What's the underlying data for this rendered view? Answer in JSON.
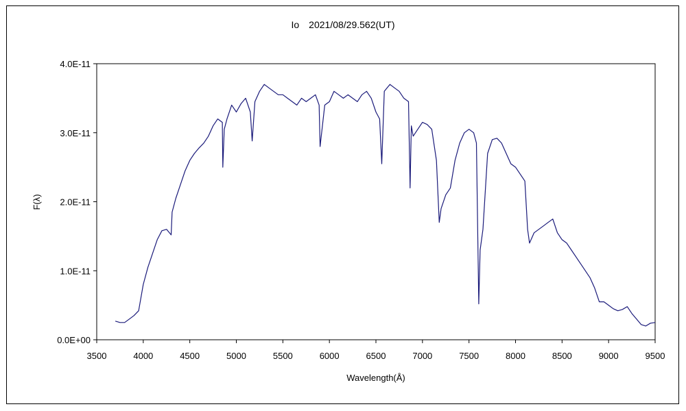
{
  "chart_data": {
    "type": "line",
    "title": "Io　2021/08/29.562(UT)",
    "xlabel": "Wavelength(Å)",
    "ylabel": "F(λ)",
    "xlim": [
      3500,
      9500
    ],
    "ylim": [
      0,
      4e-11
    ],
    "x_ticks": [
      3500,
      4000,
      4500,
      5000,
      5500,
      6000,
      6500,
      7000,
      7500,
      8000,
      8500,
      9000,
      9500
    ],
    "y_ticks": [
      0,
      1e-11,
      2e-11,
      3e-11,
      4e-11
    ],
    "x_tick_labels": [
      "3500",
      "4000",
      "4500",
      "5000",
      "5500",
      "6000",
      "6500",
      "7000",
      "7500",
      "8000",
      "8500",
      "9000",
      "9500"
    ],
    "y_tick_labels": [
      "0.0E+00",
      "1.0E-11",
      "2.0E-11",
      "3.0E-11",
      "4.0E-11"
    ],
    "grid": false,
    "legend": "none",
    "line_color": "#1a1a7a",
    "series": [
      {
        "x": [
          3700,
          3750,
          3800,
          3850,
          3900,
          3950,
          4000,
          4050,
          4100,
          4150,
          4200,
          4250,
          4300,
          4310,
          4350,
          4400,
          4450,
          4500,
          4550,
          4600,
          4650,
          4700,
          4750,
          4800,
          4850,
          4855,
          4870,
          4900,
          4950,
          5000,
          5050,
          5100,
          5150,
          5170,
          5200,
          5250,
          5300,
          5350,
          5400,
          5450,
          5500,
          5550,
          5600,
          5650,
          5700,
          5750,
          5800,
          5850,
          5890,
          5900,
          5950,
          6000,
          6050,
          6100,
          6150,
          6200,
          6250,
          6300,
          6350,
          6400,
          6450,
          6500,
          6540,
          6563,
          6590,
          6650,
          6700,
          6750,
          6800,
          6850,
          6867,
          6880,
          6900,
          6950,
          7000,
          7050,
          7100,
          7150,
          7180,
          7200,
          7250,
          7300,
          7350,
          7400,
          7450,
          7500,
          7550,
          7580,
          7605,
          7620,
          7650,
          7700,
          7750,
          7800,
          7850,
          7900,
          7950,
          8000,
          8050,
          8100,
          8130,
          8150,
          8200,
          8250,
          8300,
          8350,
          8400,
          8450,
          8500,
          8550,
          8600,
          8650,
          8700,
          8750,
          8800,
          8850,
          8900,
          8950,
          9000,
          9050,
          9100,
          9150,
          9200,
          9250,
          9300,
          9350,
          9400,
          9450,
          9500
        ],
        "y": [
          2.7e-12,
          2.5e-12,
          2.5e-12,
          3e-12,
          3.5e-12,
          4.2e-12,
          8e-12,
          1.05e-11,
          1.25e-11,
          1.45e-11,
          1.58e-11,
          1.6e-11,
          1.52e-11,
          1.85e-11,
          2.05e-11,
          2.25e-11,
          2.45e-11,
          2.6e-11,
          2.7e-11,
          2.78e-11,
          2.85e-11,
          2.95e-11,
          3.1e-11,
          3.2e-11,
          3.15e-11,
          2.5e-11,
          3.05e-11,
          3.2e-11,
          3.4e-11,
          3.3e-11,
          3.42e-11,
          3.5e-11,
          3.3e-11,
          2.88e-11,
          3.45e-11,
          3.6e-11,
          3.7e-11,
          3.65e-11,
          3.6e-11,
          3.55e-11,
          3.55e-11,
          3.5e-11,
          3.45e-11,
          3.4e-11,
          3.5e-11,
          3.45e-11,
          3.5e-11,
          3.55e-11,
          3.4e-11,
          2.8e-11,
          3.4e-11,
          3.45e-11,
          3.6e-11,
          3.55e-11,
          3.5e-11,
          3.55e-11,
          3.5e-11,
          3.45e-11,
          3.55e-11,
          3.6e-11,
          3.5e-11,
          3.3e-11,
          3.2e-11,
          2.55e-11,
          3.6e-11,
          3.7e-11,
          3.65e-11,
          3.6e-11,
          3.5e-11,
          3.45e-11,
          2.2e-11,
          3.1e-11,
          2.95e-11,
          3.05e-11,
          3.15e-11,
          3.12e-11,
          3.05e-11,
          2.6e-11,
          1.7e-11,
          1.9e-11,
          2.1e-11,
          2.2e-11,
          2.6e-11,
          2.85e-11,
          3e-11,
          3.05e-11,
          3e-11,
          2.85e-11,
          5.2e-12,
          1.3e-11,
          1.6e-11,
          2.7e-11,
          2.9e-11,
          2.92e-11,
          2.85e-11,
          2.7e-11,
          2.55e-11,
          2.5e-11,
          2.4e-11,
          2.3e-11,
          1.6e-11,
          1.4e-11,
          1.55e-11,
          1.6e-11,
          1.65e-11,
          1.7e-11,
          1.75e-11,
          1.55e-11,
          1.45e-11,
          1.4e-11,
          1.3e-11,
          1.2e-11,
          1.1e-11,
          1e-11,
          9e-12,
          7.5e-12,
          5.5e-12,
          5.5e-12,
          5e-12,
          4.5e-12,
          4.2e-12,
          4.4e-12,
          4.8e-12,
          3.8e-12,
          3e-12,
          2.2e-12,
          2e-12,
          2.4e-12,
          2.5e-12
        ]
      }
    ]
  }
}
